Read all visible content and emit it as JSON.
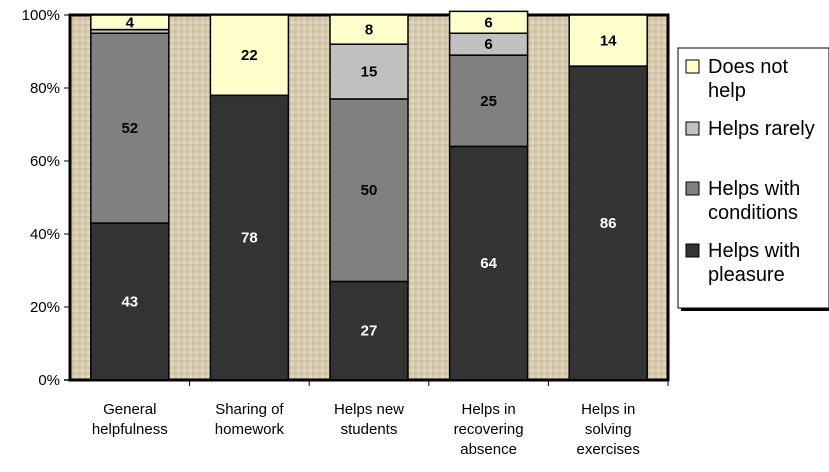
{
  "chart_data": {
    "type": "bar",
    "stacked": true,
    "percent": true,
    "categories": [
      [
        "General",
        "helpfulness"
      ],
      [
        "Sharing of",
        "homework"
      ],
      [
        "Helps new",
        "students"
      ],
      [
        "Helps in",
        "recovering",
        "absence"
      ],
      [
        "Helps in",
        "solving",
        "exercises"
      ]
    ],
    "series": [
      {
        "name": "Helps with pleasure",
        "color": "#333333",
        "label_color": "#ffffff",
        "values": [
          43,
          78,
          27,
          64,
          86
        ]
      },
      {
        "name": "Helps with conditions",
        "color": "#808080",
        "label_color": "#000000",
        "values": [
          52,
          0,
          50,
          25,
          0
        ]
      },
      {
        "name": "Helps rarely",
        "color": "#c0c0c0",
        "label_color": "#000000",
        "values": [
          1,
          0,
          15,
          6,
          0
        ]
      },
      {
        "name": "Does not help",
        "color": "#ffffcc",
        "label_color": "#000000",
        "values": [
          4,
          22,
          8,
          6,
          14
        ]
      }
    ],
    "data_labels": [
      [
        "43",
        "78",
        "27",
        "64",
        "86"
      ],
      [
        "52",
        "",
        "50",
        "25",
        ""
      ],
      [
        "",
        "",
        "15",
        "6",
        ""
      ],
      [
        "4",
        "22",
        "8",
        "6",
        "14"
      ]
    ],
    "legend_entries": [
      {
        "lines": [
          "Does not",
          "help"
        ],
        "color": "#ffffcc"
      },
      {
        "lines": [
          "Helps rarely"
        ],
        "color": "#c0c0c0"
      },
      {
        "lines": [
          "Helps with",
          "conditions"
        ],
        "color": "#808080"
      },
      {
        "lines": [
          "Helps with",
          "pleasure"
        ],
        "color": "#333333"
      }
    ],
    "y_ticks": [
      "0%",
      "20%",
      "40%",
      "60%",
      "80%",
      "100%"
    ],
    "ylim": [
      0,
      100
    ],
    "legend_position": "right",
    "plot_background": "#d8ccb0",
    "grid": false
  }
}
